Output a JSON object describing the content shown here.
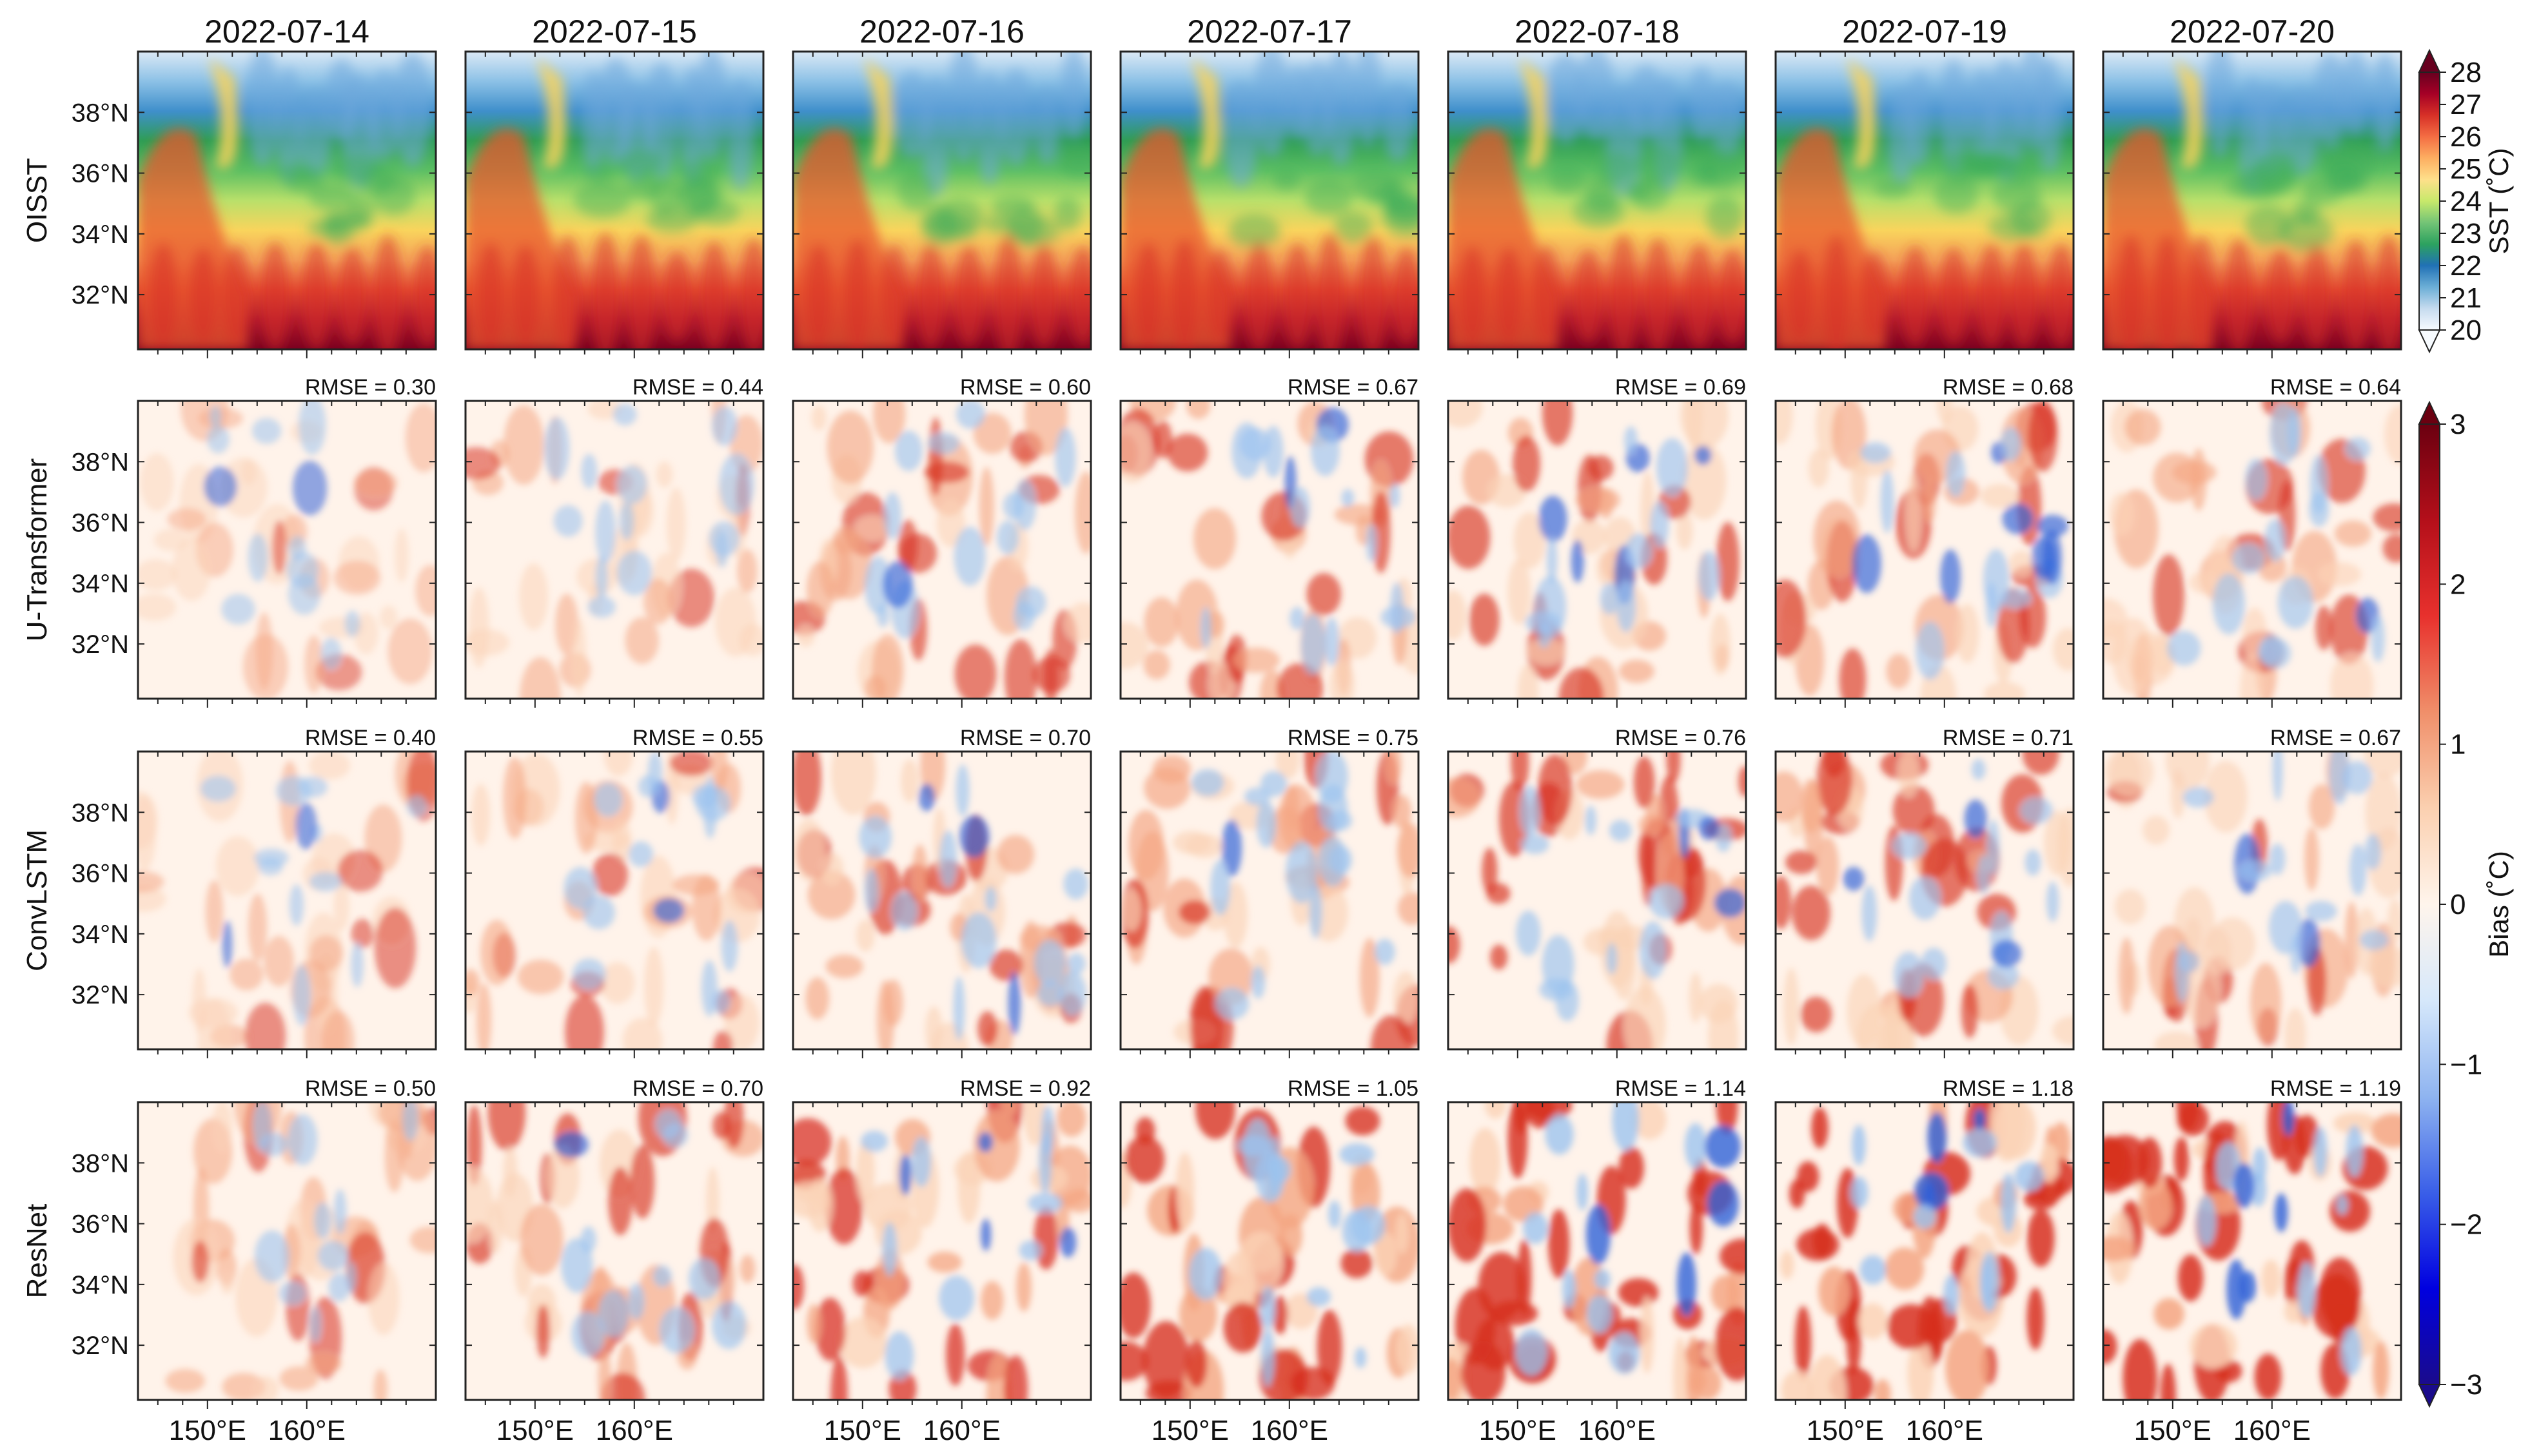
{
  "chart_data": {
    "type": "heatmap",
    "dates": [
      "2022-07-14",
      "2022-07-15",
      "2022-07-16",
      "2022-07-17",
      "2022-07-18",
      "2022-07-19",
      "2022-07-20"
    ],
    "rows": [
      "OISST",
      "U-Transformer",
      "ConvLSTM",
      "ResNet"
    ],
    "lat_ticks": [
      "38°N",
      "36°N",
      "34°N",
      "32°N"
    ],
    "lat_tick_values": [
      38,
      36,
      34,
      32
    ],
    "lat_range": [
      30.2,
      40
    ],
    "lon_ticks": [
      "150°E",
      "160°E"
    ],
    "lon_tick_values": [
      150,
      160
    ],
    "lon_range": [
      143,
      173
    ],
    "rmse_prefix": "RMSE = ",
    "rmse": {
      "U-Transformer": [
        "0.30",
        "0.44",
        "0.60",
        "0.67",
        "0.69",
        "0.68",
        "0.64"
      ],
      "ConvLSTM": [
        "0.40",
        "0.55",
        "0.70",
        "0.75",
        "0.76",
        "0.71",
        "0.67"
      ],
      "ResNet": [
        "0.50",
        "0.70",
        "0.92",
        "1.05",
        "1.14",
        "1.18",
        "1.19"
      ]
    },
    "sst_colorbar": {
      "label": "SST (˚C)",
      "min": 20,
      "max": 28,
      "ticks": [
        "28",
        "27",
        "26",
        "25",
        "24",
        "23",
        "22",
        "21",
        "20"
      ],
      "colormap": [
        "#f7fbff",
        "#c6dbef",
        "#6baed6",
        "#2171b5",
        "#2ca25f",
        "#74c476",
        "#c7e96b",
        "#fee08b",
        "#fdae61",
        "#f46d43",
        "#d73027",
        "#a50026",
        "#67001f"
      ]
    },
    "bias_colorbar": {
      "label": "Bias (˚C)",
      "min": -3,
      "max": 3,
      "ticks": [
        "3",
        "2",
        "1",
        "0",
        "−1",
        "−2",
        "−3"
      ],
      "colormap": [
        "#1a0b8c",
        "#0000e0",
        "#3a5fe8",
        "#8fb4f0",
        "#d6e8fb",
        "#fff5ec",
        "#fbd0b0",
        "#f08f6a",
        "#e8312d",
        "#b40f1a",
        "#6b0010"
      ]
    }
  }
}
